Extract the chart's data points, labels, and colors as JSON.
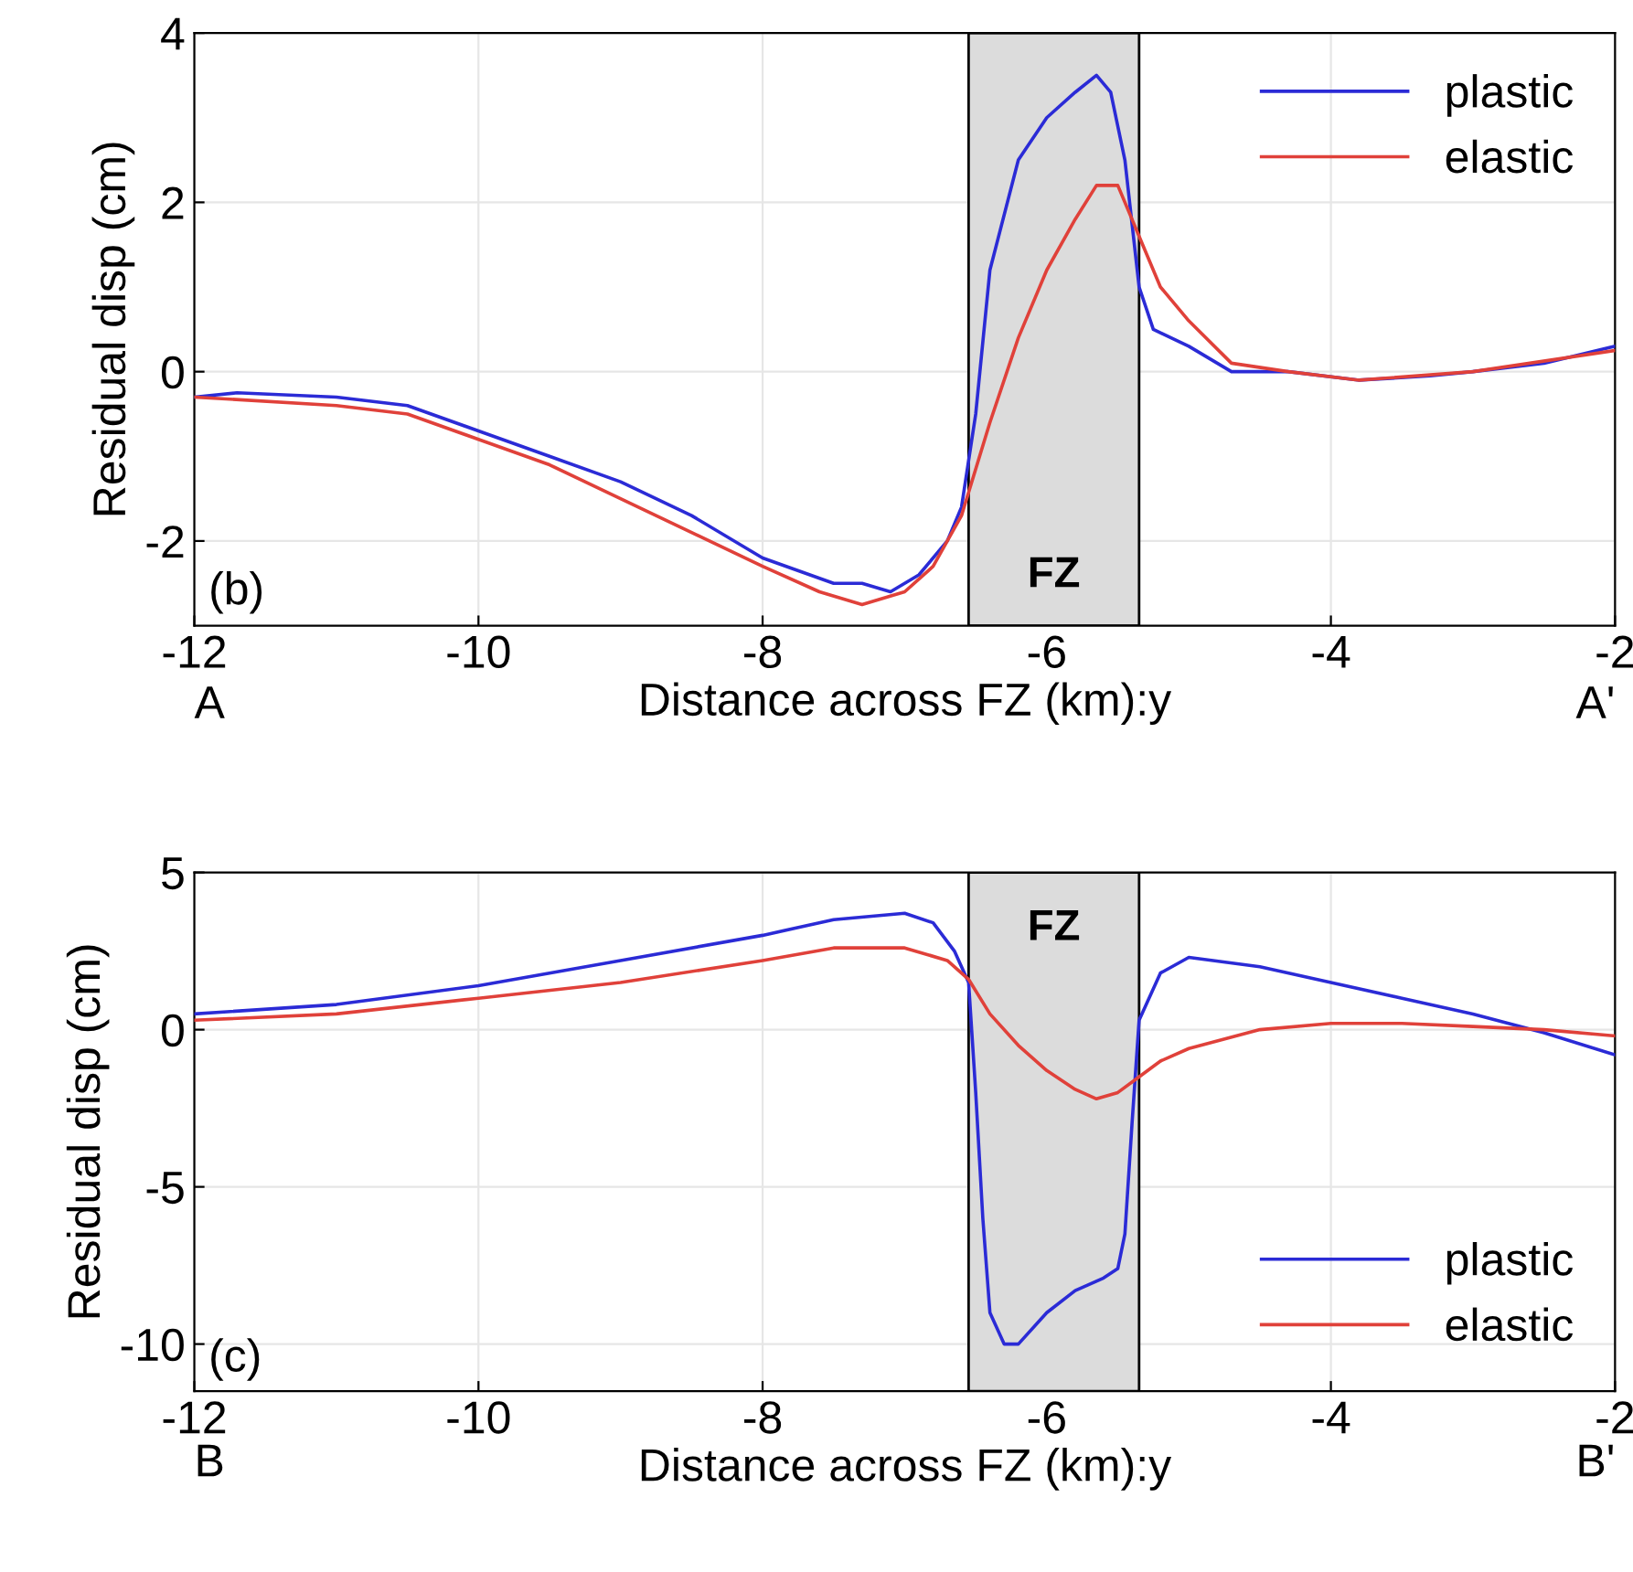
{
  "chart_data": [
    {
      "type": "line",
      "xlabel": "Distance across FZ (km):y",
      "ylabel": "Residual disp (cm)",
      "xlim": [
        -12,
        -2
      ],
      "xticks": [
        -12,
        -10,
        -8,
        -6,
        -4,
        -2
      ],
      "ylim": [
        -3,
        4
      ],
      "yticks": [
        -2,
        0,
        2,
        4
      ],
      "grid": true,
      "legend": "top right",
      "annotations": [
        "(b)",
        "A",
        "A'"
      ],
      "bands": [
        {
          "axis": "x",
          "from": -6.55,
          "to": -5.35,
          "label": "FZ",
          "color": "#dcdcdc"
        }
      ],
      "series": [
        {
          "name": "plastic",
          "color": "#2b2bd6",
          "x": [
            -12,
            -11.7,
            -11,
            -10.5,
            -10,
            -9.5,
            -9,
            -8.5,
            -8,
            -7.5,
            -7.3,
            -7.1,
            -6.9,
            -6.7,
            -6.6,
            -6.5,
            -6.4,
            -6.2,
            -6,
            -5.8,
            -5.65,
            -5.55,
            -5.45,
            -5.35,
            -5.25,
            -5,
            -4.7,
            -4.3,
            -3.8,
            -3.3,
            -3,
            -2.5,
            -2
          ],
          "values": [
            -0.3,
            -0.25,
            -0.3,
            -0.4,
            -0.7,
            -1.0,
            -1.3,
            -1.7,
            -2.2,
            -2.5,
            -2.5,
            -2.6,
            -2.4,
            -2.0,
            -1.6,
            -0.5,
            1.2,
            2.5,
            3.0,
            3.3,
            3.5,
            3.3,
            2.5,
            1.0,
            0.5,
            0.3,
            0.0,
            0.0,
            -0.1,
            -0.05,
            0.0,
            0.1,
            0.3
          ]
        },
        {
          "name": "elastic",
          "color": "#e0413a",
          "x": [
            -12,
            -11,
            -10.5,
            -10,
            -9.5,
            -9,
            -8.5,
            -8,
            -7.6,
            -7.3,
            -7,
            -6.8,
            -6.6,
            -6.4,
            -6.2,
            -6,
            -5.8,
            -5.65,
            -5.5,
            -5.35,
            -5.2,
            -5,
            -4.7,
            -4.3,
            -3.8,
            -3,
            -2
          ],
          "values": [
            -0.3,
            -0.4,
            -0.5,
            -0.8,
            -1.1,
            -1.5,
            -1.9,
            -2.3,
            -2.6,
            -2.75,
            -2.6,
            -2.3,
            -1.7,
            -0.6,
            0.4,
            1.2,
            1.8,
            2.2,
            2.2,
            1.6,
            1.0,
            0.6,
            0.1,
            0.0,
            -0.1,
            0.0,
            0.25
          ]
        }
      ]
    },
    {
      "type": "line",
      "xlabel": "Distance across FZ (km):y",
      "ylabel": "Residual disp (cm)",
      "xlim": [
        -12,
        -2
      ],
      "xticks": [
        -12,
        -10,
        -8,
        -6,
        -4,
        -2
      ],
      "ylim": [
        -11.5,
        5
      ],
      "yticks": [
        -10,
        -5,
        0,
        5
      ],
      "grid": true,
      "legend": "bottom right",
      "annotations": [
        "(c)",
        "B",
        "B'"
      ],
      "bands": [
        {
          "axis": "x",
          "from": -6.55,
          "to": -5.35,
          "label": "FZ",
          "color": "#dcdcdc"
        }
      ],
      "series": [
        {
          "name": "plastic",
          "color": "#2b2bd6",
          "x": [
            -12,
            -11,
            -10,
            -9,
            -8,
            -7.5,
            -7,
            -6.8,
            -6.65,
            -6.55,
            -6.5,
            -6.45,
            -6.4,
            -6.3,
            -6.2,
            -6.0,
            -5.8,
            -5.6,
            -5.5,
            -5.45,
            -5.4,
            -5.35,
            -5.2,
            -5,
            -4.5,
            -4,
            -3.5,
            -3,
            -2.5,
            -2
          ],
          "values": [
            0.5,
            0.8,
            1.4,
            2.2,
            3.0,
            3.5,
            3.7,
            3.4,
            2.5,
            1.5,
            -2,
            -6,
            -9,
            -10,
            -10,
            -9,
            -8.3,
            -7.9,
            -7.6,
            -6.5,
            -3,
            0.3,
            1.8,
            2.3,
            2.0,
            1.5,
            1.0,
            0.5,
            -0.1,
            -0.8
          ]
        },
        {
          "name": "elastic",
          "color": "#e0413a",
          "x": [
            -12,
            -11,
            -10,
            -9,
            -8,
            -7.5,
            -7,
            -6.7,
            -6.55,
            -6.4,
            -6.2,
            -6,
            -5.8,
            -5.65,
            -5.5,
            -5.35,
            -5.2,
            -5,
            -4.5,
            -4,
            -3.5,
            -3,
            -2.5,
            -2
          ],
          "values": [
            0.3,
            0.5,
            1.0,
            1.5,
            2.2,
            2.6,
            2.6,
            2.2,
            1.6,
            0.5,
            -0.5,
            -1.3,
            -1.9,
            -2.2,
            -2.0,
            -1.5,
            -1.0,
            -0.6,
            0.0,
            0.2,
            0.2,
            0.1,
            0.0,
            -0.2
          ]
        }
      ]
    }
  ]
}
